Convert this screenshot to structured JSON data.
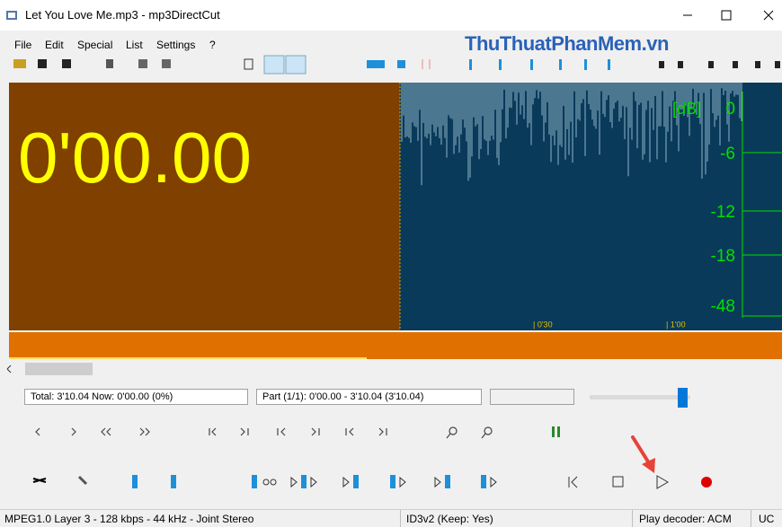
{
  "window": {
    "title": "Let You Love Me.mp3 - mp3DirectCut"
  },
  "menu": [
    "File",
    "Edit",
    "Special",
    "List",
    "Settings",
    "?"
  ],
  "watermark": "ThuThuatPhanMem.vn",
  "display": {
    "time": "0'00.00",
    "db_unit": "[dB]",
    "db_labels": [
      "0",
      "-6",
      "-12",
      "-18",
      "-48"
    ],
    "time_marks": [
      "| 0'30",
      "| 1'00"
    ]
  },
  "info": {
    "total": "Total: 3'10.04   Now: 0'00.00   (0%)",
    "part": "Part (1/1): 0'00.00 - 3'10.04 (3'10.04)"
  },
  "status": [
    "MPEG1.0 Layer 3 - 128 kbps - 44 kHz - Joint Stereo",
    "ID3v2 (Keep: Yes)",
    "Play decoder: ACM",
    "UC"
  ]
}
